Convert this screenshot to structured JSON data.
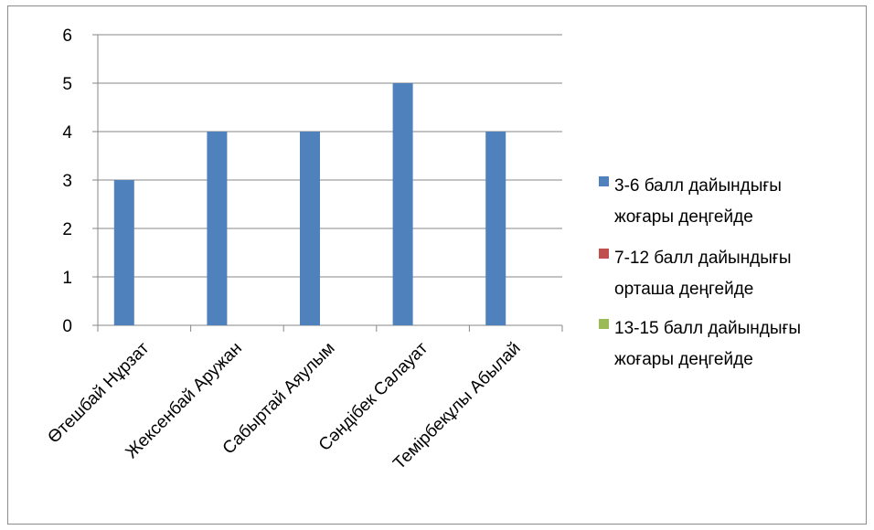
{
  "chart_data": {
    "type": "bar",
    "title": "",
    "xlabel": "",
    "ylabel": "",
    "ylim": [
      0,
      6
    ],
    "yticks": [
      "0",
      "1",
      "2",
      "3",
      "4",
      "5",
      "6"
    ],
    "grid": true,
    "legend_position": "right",
    "categories": [
      "Өтешбай Нұрзат",
      "Жексенбай Аружан",
      "Сабыртай Аяулым",
      "Сәндібек Салауат",
      "Темірбекұлы Абылай"
    ],
    "series": [
      {
        "name": "3-6 балл дайындығы жоғары деңгейде",
        "color": "#4f81bd",
        "values": [
          3,
          4,
          4,
          5,
          4
        ]
      },
      {
        "name": "7-12 балл дайындығы орташа деңгейде",
        "color": "#c0504d",
        "values": [
          0,
          0,
          0,
          0,
          0
        ]
      },
      {
        "name": "13-15 балл дайындығы жоғары деңгейде",
        "color": "#9bbb59",
        "values": [
          0,
          0,
          0,
          0,
          0
        ]
      }
    ],
    "legend": [
      {
        "lines": [
          "3-6 балл дайындығы",
          "жоғары деңгейде"
        ],
        "color": "#4f81bd"
      },
      {
        "lines": [
          "7-12 балл дайындығы",
          "орташа деңгейде"
        ],
        "color": "#c0504d"
      },
      {
        "lines": [
          "13-15 балл дайындығы",
          "жоғары деңгейде"
        ],
        "color": "#9bbb59"
      }
    ]
  }
}
